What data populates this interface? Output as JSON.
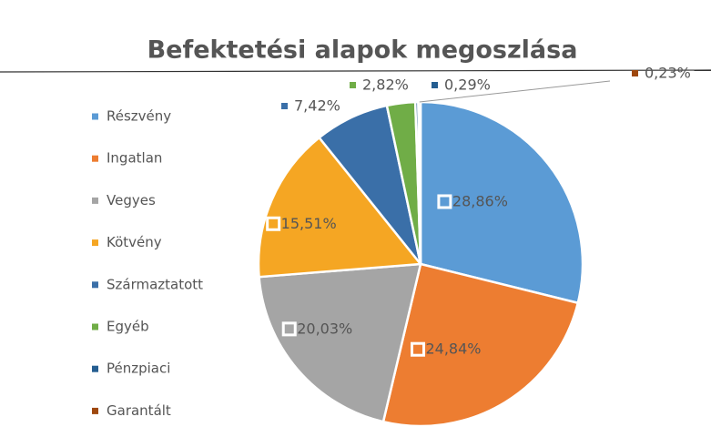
{
  "chart_data": {
    "type": "pie",
    "title": "Befektetési alapok megoszlása",
    "categories": [
      "Részvény",
      "Ingatlan",
      "Vegyes",
      "Kötvény",
      "Származtatott",
      "Egyéb",
      "Pénzpiaci",
      "Garantált"
    ],
    "values": [
      28.86,
      24.84,
      20.03,
      15.51,
      7.42,
      2.82,
      0.29,
      0.23
    ],
    "value_labels": [
      "28,86%",
      "24,84%",
      "20,03%",
      "15,51%",
      "7,42%",
      "2,82%",
      "0,29%",
      "0,23%"
    ],
    "colors": [
      "#5b9bd5",
      "#ed7d31",
      "#a5a5a5",
      "#f5a623",
      "#3a6fa8",
      "#70ad47",
      "#255e91",
      "#9e480e"
    ],
    "legend": "left"
  }
}
